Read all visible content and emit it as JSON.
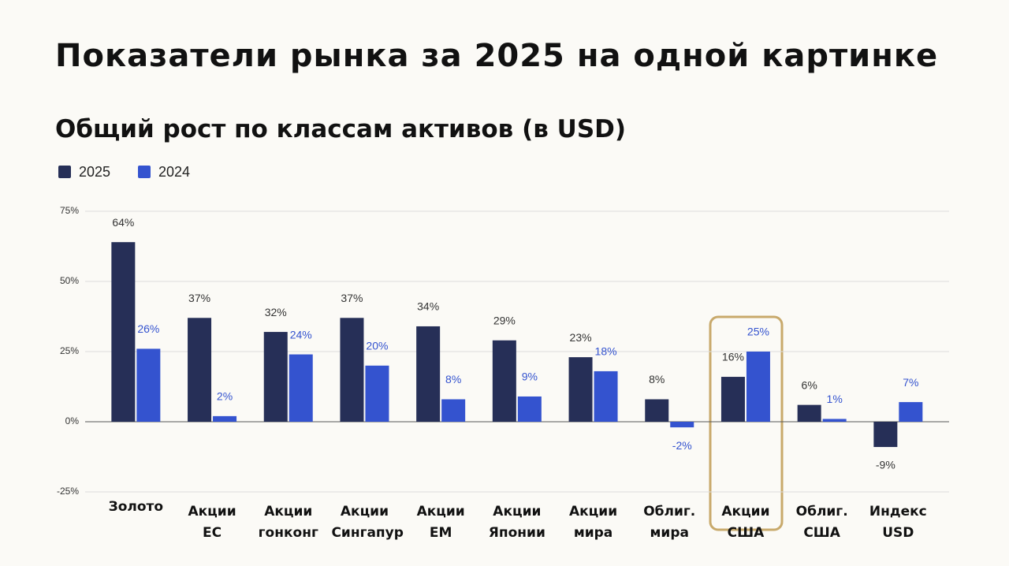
{
  "title": "Показатели рынка за 2025 на одной картинке",
  "chart_data": {
    "type": "bar",
    "title": "Общий рост по классам активов (в USD)",
    "categories": [
      "Золото",
      "Акции ЕС",
      "Акции гонконг",
      "Акции Сингапур",
      "Акции ЕМ",
      "Акции Японии",
      "Акции мира",
      "Облиг. мира",
      "Акции США",
      "Облиг. США",
      "Индекс USD"
    ],
    "series": [
      {
        "name": "2025",
        "color": "#262f57",
        "values": [
          64,
          37,
          32,
          37,
          34,
          29,
          23,
          8,
          16,
          6,
          -9
        ],
        "value_labels": [
          "64%",
          "37%",
          "32%",
          "37%",
          "34%",
          "29%",
          "23%",
          "8%",
          "16%",
          "6%",
          "-9%"
        ]
      },
      {
        "name": "2024",
        "color": "#3453cf",
        "values": [
          26,
          2,
          24,
          20,
          8,
          9,
          18,
          -2,
          25,
          1,
          7
        ],
        "value_labels": [
          "26%",
          "2%",
          "24%",
          "20%",
          "8%",
          "9%",
          "18%",
          "-2%",
          "25%",
          "1%",
          "7%"
        ]
      }
    ],
    "ylim": [
      -25,
      75
    ],
    "yticks": [
      {
        "value": -25,
        "label": "-25%"
      },
      {
        "value": 0,
        "label": "0%"
      },
      {
        "value": 25,
        "label": "25%"
      },
      {
        "value": 50,
        "label": "50%"
      },
      {
        "value": 75,
        "label": "75%"
      }
    ],
    "grid": true,
    "legend": "top-left"
  }
}
